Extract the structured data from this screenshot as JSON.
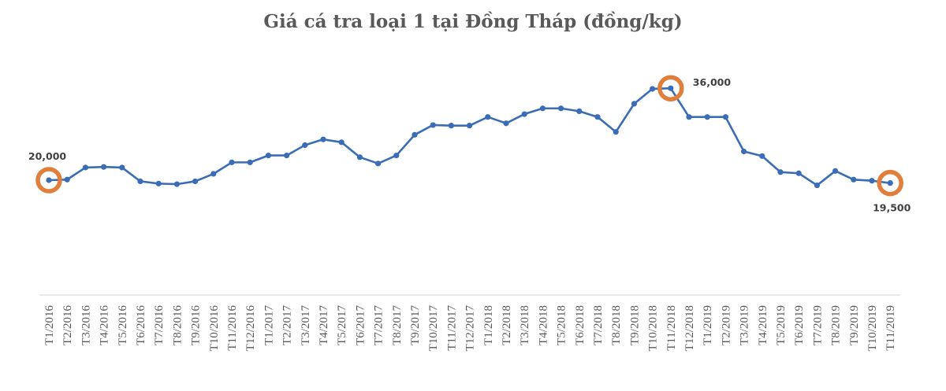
{
  "chart_data": {
    "type": "line",
    "title": "Giá cá tra loại 1 tại Đồng Tháp (đồng/kg)",
    "xlabel": "",
    "ylabel": "",
    "ylim": [
      0,
      40000
    ],
    "grid": false,
    "legend": "none",
    "categories": [
      "T1/2016",
      "T2/2016",
      "T3/2016",
      "T4/2016",
      "T5/2016",
      "T6/2016",
      "T7/2016",
      "T8/2016",
      "T9/2016",
      "T10/2016",
      "T11/2016",
      "T12/2016",
      "T1/2017",
      "T2/2017",
      "T3/2017",
      "T4/2017",
      "T5/2017",
      "T6/2017",
      "T7/2017",
      "T8/2017",
      "T9/2017",
      "T10/2017",
      "T11/2017",
      "T12/2017",
      "T1/2018",
      "T2/2018",
      "T3/2018",
      "T4/2018",
      "T5/2018",
      "T6/2018",
      "T7/2018",
      "T8/2018",
      "T9/2018",
      "T10/2018",
      "T11/2018",
      "T12/2018",
      "T1/2019",
      "T2/2019",
      "T3/2019",
      "T4/2019",
      "T5/2019",
      "T6/2019",
      "T7/2019",
      "T8/2019",
      "T9/2019",
      "T10/2019",
      "T11/2019"
    ],
    "series": [
      {
        "values": [
          20000,
          20100,
          22200,
          22300,
          22200,
          19800,
          19400,
          19300,
          19800,
          21100,
          23100,
          23100,
          24300,
          24300,
          26100,
          27100,
          26600,
          24000,
          22900,
          24300,
          27900,
          29600,
          29500,
          29500,
          31000,
          29900,
          31500,
          32500,
          32500,
          32000,
          31000,
          28400,
          33300,
          35900,
          36000,
          31000,
          31000,
          31000,
          25000,
          24200,
          21400,
          21200,
          19100,
          21600,
          20100,
          19900,
          19500
        ],
        "color": "#3A6DB5"
      }
    ],
    "annotations": [
      {
        "index": 0,
        "label": "20,000",
        "position": "above"
      },
      {
        "index": 34,
        "label": "36,000",
        "position": "right"
      },
      {
        "index": 46,
        "label": "19,500",
        "position": "below"
      }
    ],
    "highlight_color": "#E07E3C"
  }
}
